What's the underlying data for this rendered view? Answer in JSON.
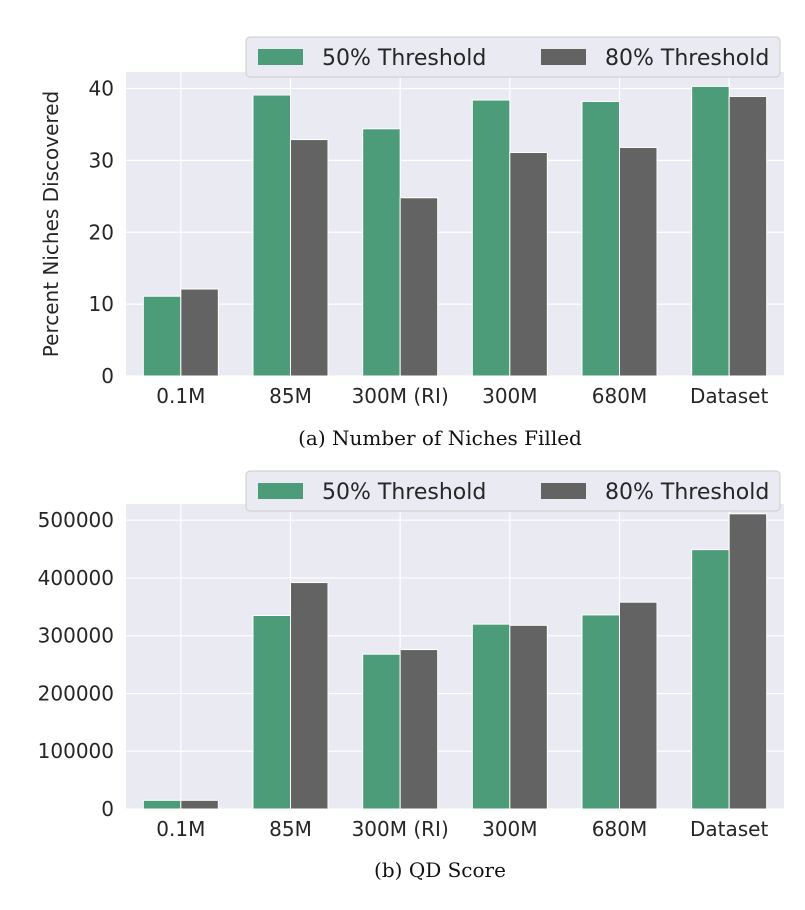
{
  "colors": {
    "background": "#eaeaf2",
    "grid": "#ffffff",
    "series_50": "#4c9c79",
    "series_80": "#636363"
  },
  "chart_data": [
    {
      "type": "bar",
      "caption": "(a) Number of Niches Filled",
      "categories": [
        "0.1M",
        "85M",
        "300M (RI)",
        "300M",
        "680M",
        "Dataset"
      ],
      "series": [
        {
          "name": "50% Threshold",
          "values": [
            11.1,
            39.1,
            34.4,
            38.4,
            38.2,
            40.3
          ]
        },
        {
          "name": "80% Threshold",
          "values": [
            12.1,
            32.9,
            24.8,
            31.1,
            31.8,
            38.9
          ]
        }
      ],
      "ylabel": "Percent Niches Discovered",
      "ylim": [
        0,
        42.3
      ],
      "yticks": [
        0,
        10,
        20,
        30,
        40
      ],
      "grid": true,
      "legend": "top-right"
    },
    {
      "type": "bar",
      "caption": "(b) QD Score",
      "categories": [
        "0.1M",
        "85M",
        "300M (RI)",
        "300M",
        "680M",
        "Dataset"
      ],
      "series": [
        {
          "name": "50% Threshold",
          "values": [
            15000,
            335000,
            268000,
            320000,
            336000,
            449000
          ]
        },
        {
          "name": "80% Threshold",
          "values": [
            15000,
            392000,
            276000,
            318000,
            358000,
            511000
          ]
        }
      ],
      "ylabel": "",
      "ylim": [
        0,
        528000
      ],
      "yticks": [
        0,
        100000,
        200000,
        300000,
        400000,
        500000
      ],
      "grid": true,
      "legend": "top-right"
    }
  ]
}
